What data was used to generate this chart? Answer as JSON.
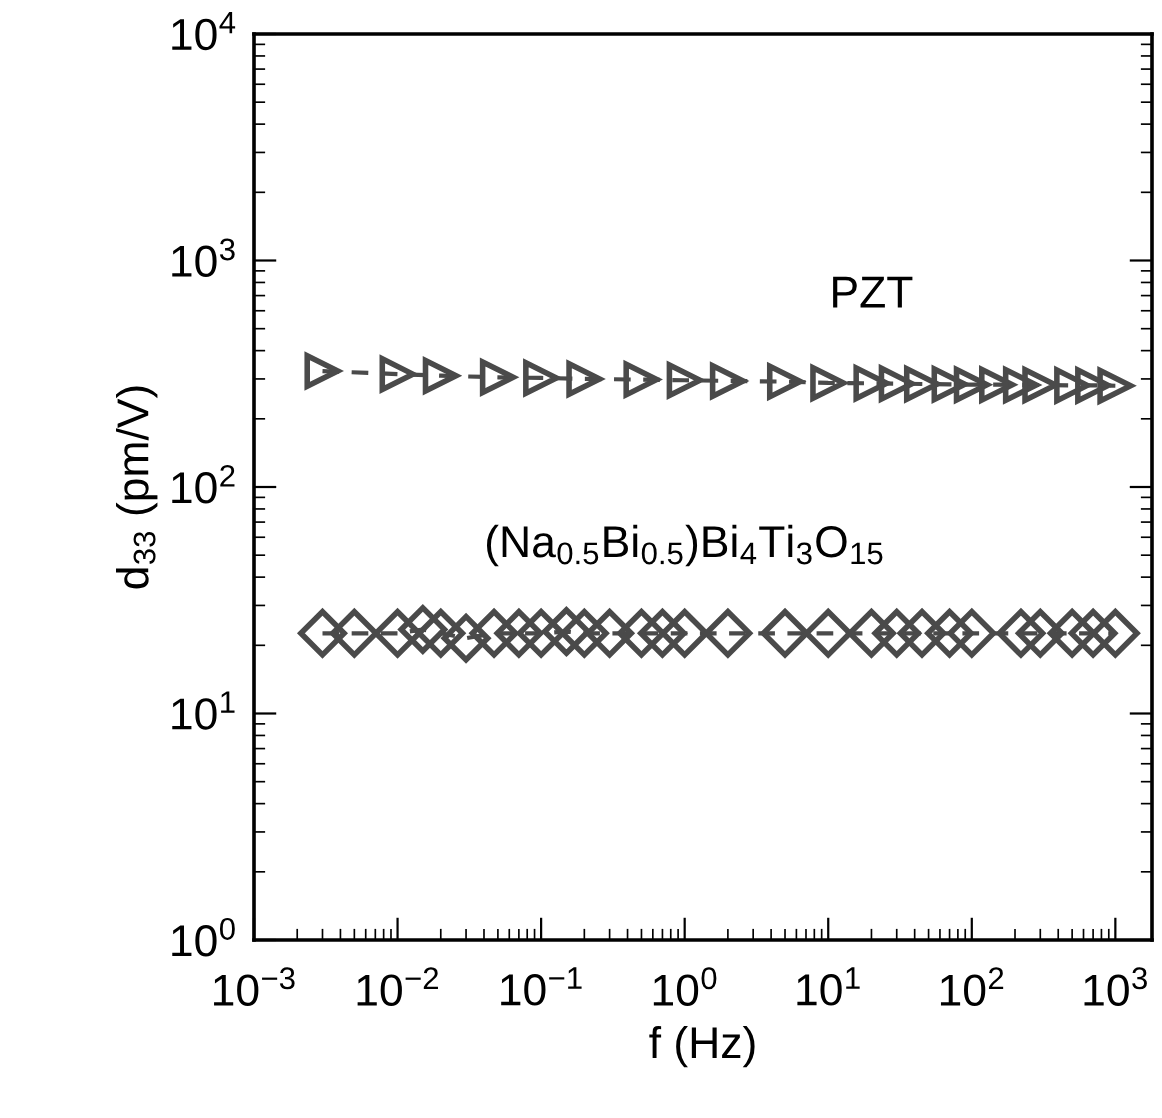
{
  "chart_data": {
    "type": "line",
    "xlabel": "f (Hz)",
    "ylabel": "d$_{33}$ (pm/V)",
    "log": "xy",
    "grid": false,
    "legend": false,
    "line_style": "dashed",
    "xlim": [
      0.001,
      1800
    ],
    "ylim": [
      1,
      10000
    ],
    "xticks": [
      {
        "value": 0.001,
        "label": "10$^{−3}$"
      },
      {
        "value": 0.01,
        "label": "10$^{−2}$"
      },
      {
        "value": 0.1,
        "label": "10$^{−1}$"
      },
      {
        "value": 1,
        "label": "10$^{0}$"
      },
      {
        "value": 10,
        "label": "10$^{1}$"
      },
      {
        "value": 100,
        "label": "10$^{2}$"
      },
      {
        "value": 1000,
        "label": "10$^{3}$"
      }
    ],
    "yticks": [
      {
        "value": 1,
        "label": "10$^{0}$"
      },
      {
        "value": 10,
        "label": "10$^{1}$"
      },
      {
        "value": 100,
        "label": "10$^{2}$"
      },
      {
        "value": 1000,
        "label": "10$^{3}$"
      },
      {
        "value": 10000,
        "label": "10$^{4}$"
      }
    ],
    "series": [
      {
        "name": "PZT",
        "color": "#4a4a4a",
        "marker": "triangle",
        "x": [
          0.003,
          0.01,
          0.02,
          0.05,
          0.1,
          0.2,
          0.5,
          1,
          2,
          5,
          10,
          20,
          30,
          45,
          70,
          100,
          150,
          220,
          300,
          500,
          700,
          1000
        ],
        "values": [
          325,
          315,
          310,
          305,
          303,
          300,
          298,
          296,
          294,
          292,
          288,
          287,
          286,
          285,
          284,
          283,
          283,
          282,
          282,
          281,
          281,
          280
        ]
      },
      {
        "name": "(Na$_{0.5}$Bi$_{0.5}$)Bi$_{4}$Ti$_{3}$O$_{15}$",
        "color": "#4a4a4a",
        "marker": "diamond",
        "x": [
          0.003,
          0.005,
          0.01,
          0.015,
          0.02,
          0.03,
          0.047,
          0.07,
          0.1,
          0.15,
          0.2,
          0.3,
          0.5,
          0.7,
          1,
          2,
          5,
          10,
          20,
          30,
          45,
          70,
          100,
          220,
          300,
          500,
          700,
          1000
        ],
        "values": [
          22.6,
          22.6,
          22.6,
          23.5,
          22.6,
          21.5,
          22.6,
          22.6,
          22.6,
          23,
          22.6,
          22.6,
          22.6,
          22.6,
          22.6,
          22.6,
          22.6,
          22.6,
          22.6,
          22.6,
          22.6,
          22.6,
          22.6,
          22.6,
          22.6,
          22.6,
          22.6,
          22.6
        ]
      }
    ]
  }
}
